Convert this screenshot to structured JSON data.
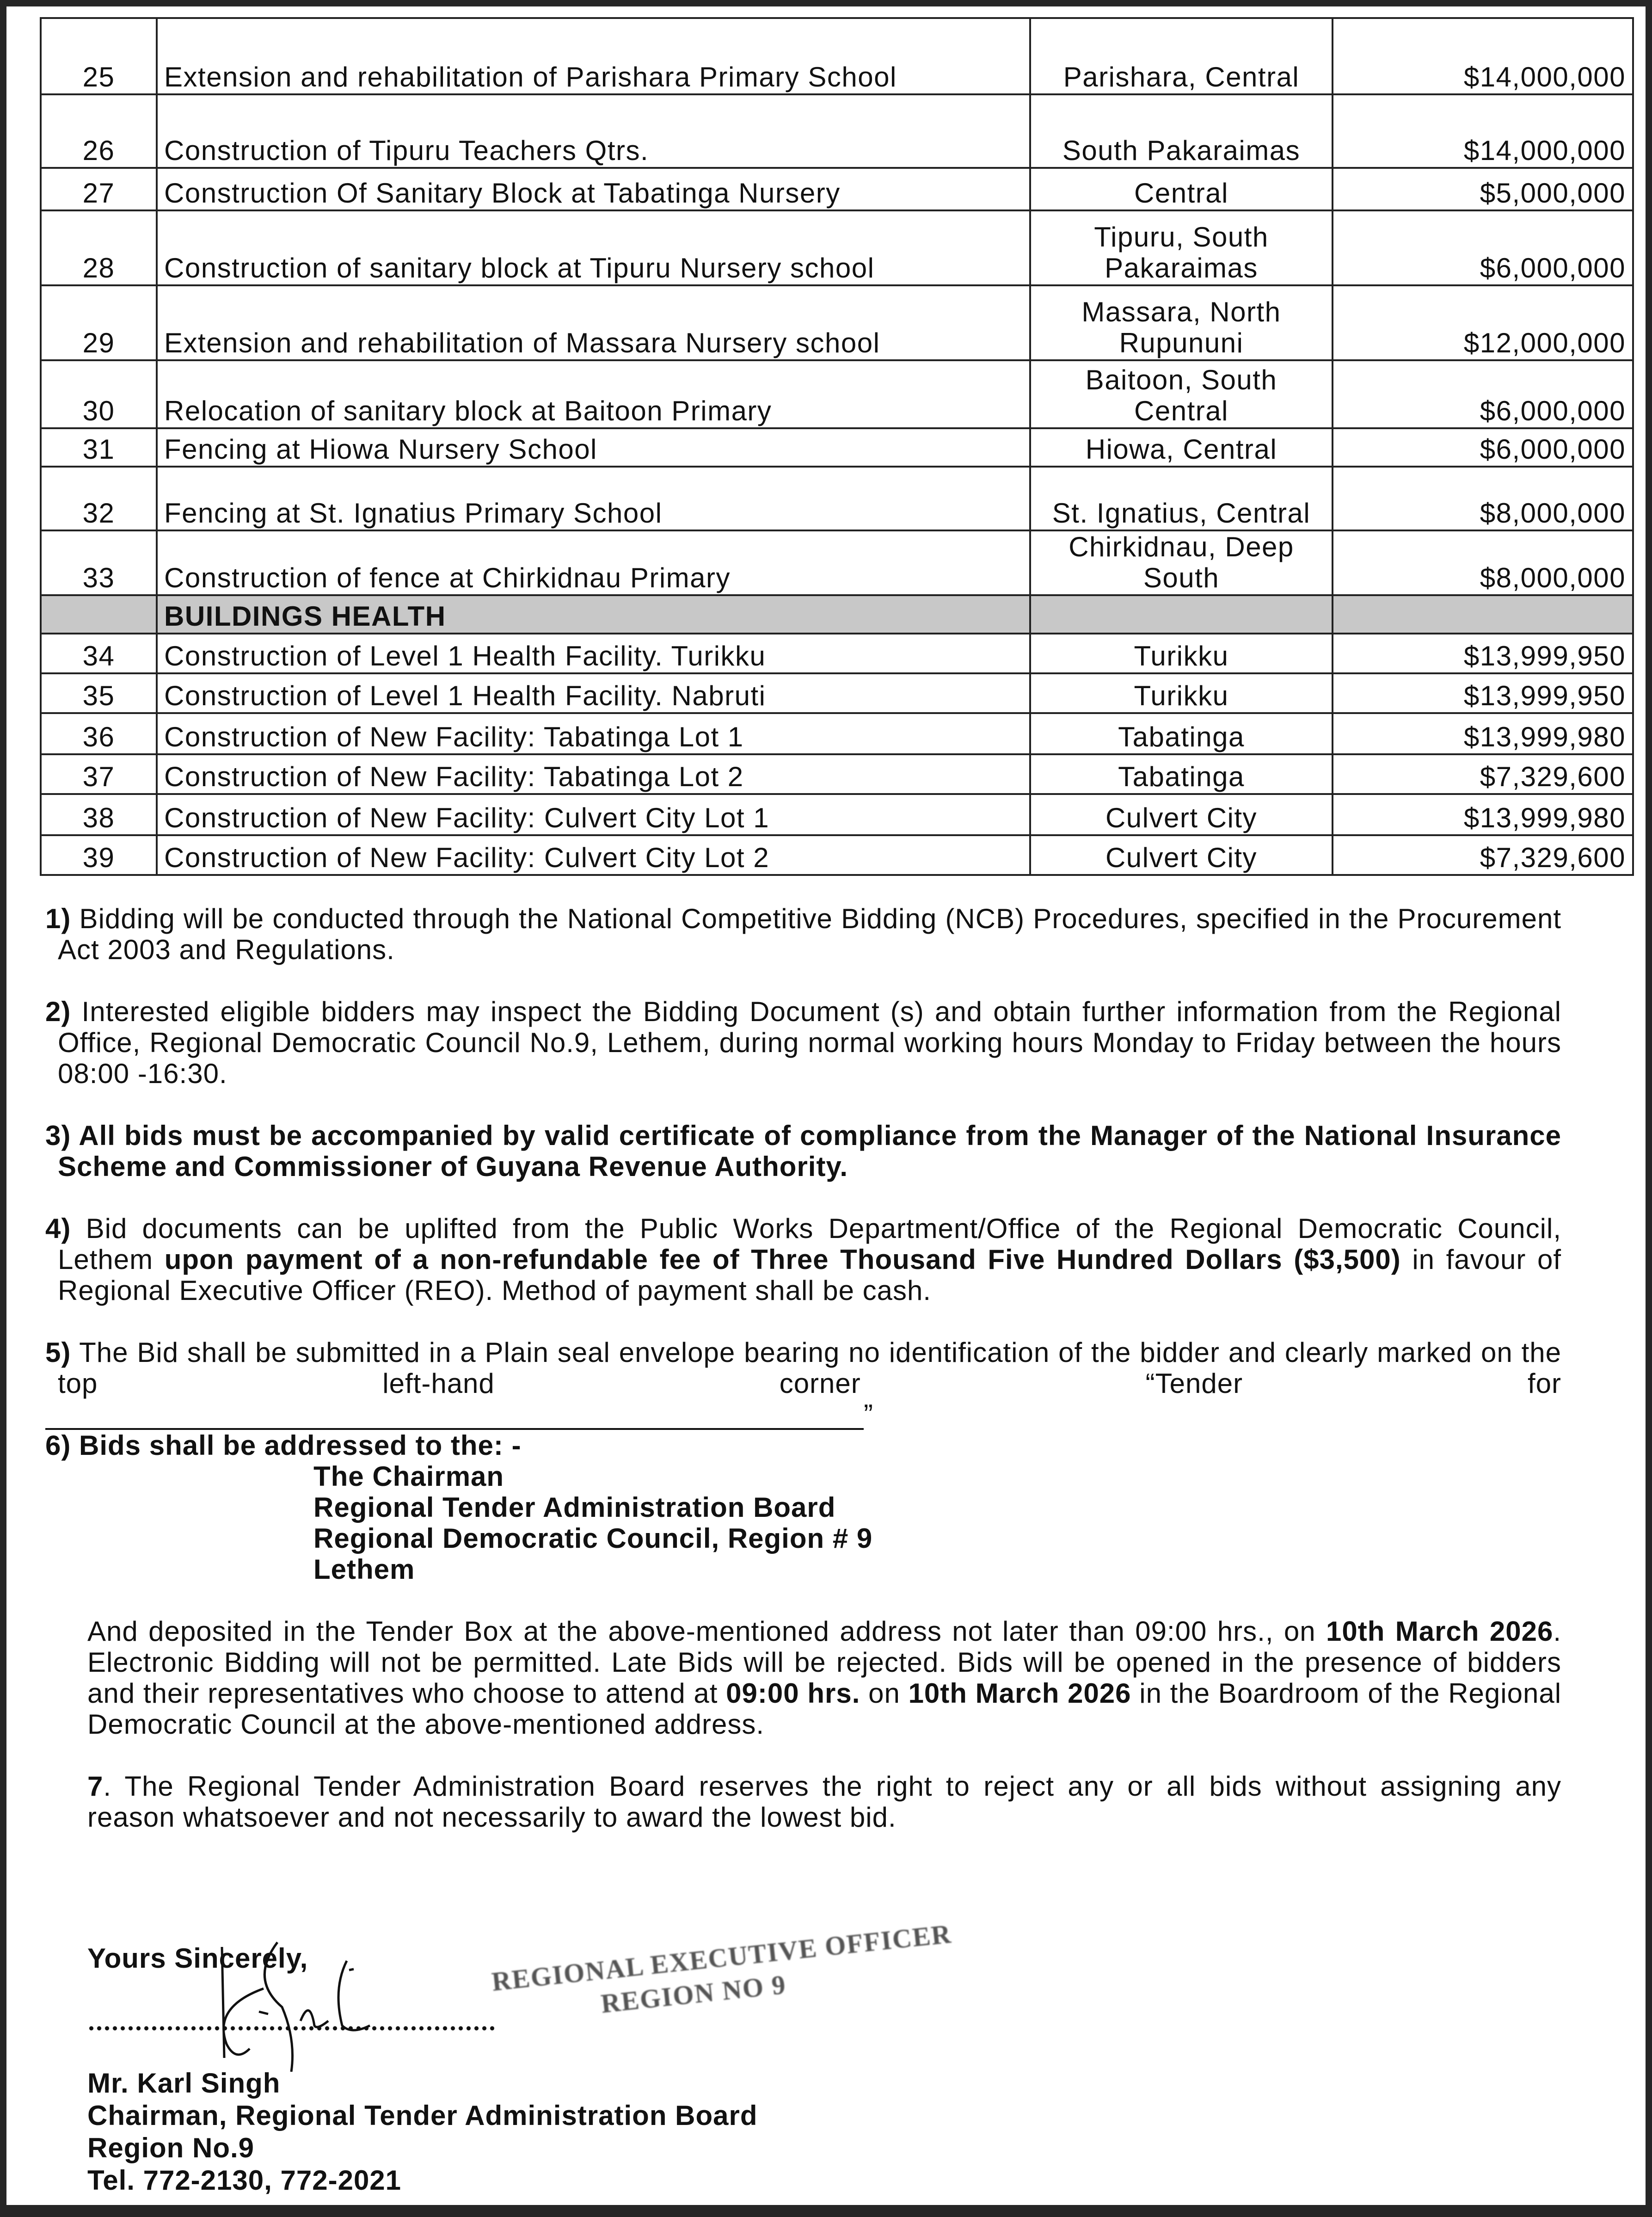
{
  "table": {
    "rows": [
      {
        "no": "25",
        "desc": "Extension and rehabilitation of Parishara Primary School",
        "loc": "Parishara, Central",
        "amount": "$14,000,000"
      },
      {
        "no": "26",
        "desc": "Construction of Tipuru Teachers Qtrs.",
        "loc": "South Pakaraimas",
        "amount": "$14,000,000"
      },
      {
        "no": "27",
        "desc": "Construction Of Sanitary Block at Tabatinga Nursery",
        "loc": "Central",
        "amount": "$5,000,000"
      },
      {
        "no": "28",
        "desc": "Construction of sanitary block at Tipuru Nursery school",
        "loc": "Tipuru, South Pakaraimas",
        "amount": "$6,000,000"
      },
      {
        "no": "29",
        "desc": "Extension and rehabilitation of Massara Nursery school",
        "loc": "Massara, North Rupununi",
        "amount": "$12,000,000"
      },
      {
        "no": "30",
        "desc": "Relocation of sanitary block at Baitoon Primary",
        "loc": "Baitoon, South Central",
        "amount": "$6,000,000"
      },
      {
        "no": "31",
        "desc": "Fencing at Hiowa Nursery School",
        "loc": "Hiowa, Central",
        "amount": "$6,000,000"
      },
      {
        "no": "32",
        "desc": "Fencing at St. Ignatius Primary School",
        "loc": "St. Ignatius, Central",
        "amount": "$8,000,000"
      },
      {
        "no": "33",
        "desc": "Construction of fence at Chirkidnau Primary",
        "loc": "Chirkidnau, Deep South",
        "amount": "$8,000,000"
      }
    ],
    "section": "BUILDINGS HEALTH",
    "rows2": [
      {
        "no": "34",
        "desc": "Construction of Level 1 Health Facility. Turikku",
        "loc": "Turikku",
        "amount": "$13,999,950"
      },
      {
        "no": "35",
        "desc": "Construction of Level 1 Health Facility. Nabruti",
        "loc": "Turikku",
        "amount": "$13,999,950"
      },
      {
        "no": "36",
        "desc": "Construction of New Facility: Tabatinga Lot 1",
        "loc": "Tabatinga",
        "amount": "$13,999,980"
      },
      {
        "no": "37",
        "desc": "Construction of New Facility: Tabatinga Lot 2",
        "loc": "Tabatinga",
        "amount": "$7,329,600"
      },
      {
        "no": "38",
        "desc": "Construction of New Facility: Culvert City Lot 1",
        "loc": "Culvert City",
        "amount": "$13,999,980"
      },
      {
        "no": "39",
        "desc": "Construction of New Facility: Culvert City Lot 2",
        "loc": "Culvert City",
        "amount": "$7,329,600"
      }
    ]
  },
  "paras": {
    "p1": {
      "num": "1)",
      "text": " Bidding will be conducted through the National Competitive Bidding (NCB) Procedures, specified in the Procurement Act 2003 and Regulations."
    },
    "p2": {
      "num": "2)",
      "text": " Interested eligible bidders may inspect the Bidding Document (s) and obtain further information from the Regional Office, Regional Democratic Council No.9, Lethem, during normal working hours Monday to Friday between the hours 08:00 -16:30."
    },
    "p3": {
      "num": "3)",
      "text": " All bids must be accompanied by valid certificate of compliance from the Manager of the National Insurance Scheme and Commissioner of Guyana Revenue Authority."
    },
    "p4": {
      "num": "4)",
      "t1": " Bid documents can be uplifted from the Public Works Department/Office of the Regional Democratic Council, Lethem ",
      "t2": "upon payment of a non-refundable fee of Three Thousand Five Hundred Dollars ($3,500)",
      "t3": " in favour of Regional Executive Officer (REO).  Method of payment shall be cash."
    },
    "p5": {
      "num": "5)",
      "text": " The Bid shall be submitted in a Plain seal envelope bearing no identification of the bidder and clearly marked on the top left-hand corner “Tender for",
      "close": "”"
    },
    "p6": {
      "text": "6) Bids shall be addressed to the: -"
    },
    "address": [
      "The Chairman",
      "Regional Tender Administration Board",
      "Regional Democratic Council, Region # 9",
      "Lethem"
    ],
    "deposit": {
      "t1": "And deposited in the Tender Box at the above-mentioned address not later than 09:00 hrs., on ",
      "b1": "10th March 2026",
      "t2": ".  Electronic Bidding will not be permitted.  Late Bids will be rejected. Bids will be opened in the presence of bidders and their representatives who choose to attend at ",
      "b2": "09:00 hrs.",
      "t3": " on ",
      "b3": "10th March 2026",
      "t4": " in the Boardroom of the Regional Democratic Council at the above-mentioned address."
    },
    "p7": {
      "num": "7",
      "text": ". The Regional Tender Administration Board reserves the right to reject any or all bids without assigning any reason whatsoever and not necessarily to award the lowest bid."
    }
  },
  "closing": {
    "salutation": "Yours Sincerely,",
    "name": "Mr. Karl Singh",
    "title": "Chairman, Regional Tender Administration Board",
    "region": "Region No.9",
    "tel": "Tel. 772-2130, 772-2021"
  },
  "stamp": {
    "line1": "REGIONAL EXECUTIVE OFFICER",
    "line2": "REGION NO 9"
  }
}
